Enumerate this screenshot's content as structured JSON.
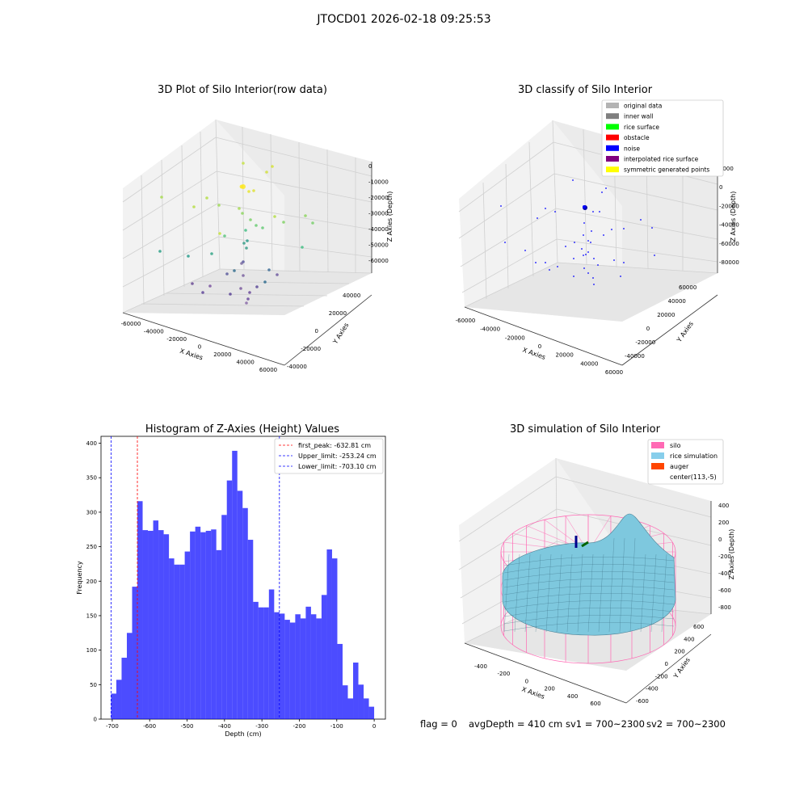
{
  "suptitle": "JTOCD01 2026-02-18 09:25:53",
  "status": {
    "flag": "flag = 0",
    "avg": "avgDepth = 410 cm",
    "sv1": "sv1 = 700~2300",
    "sv2": "sv2 = 700~2300"
  },
  "chart_data": [
    {
      "type": "scatter",
      "title": "3D Plot of Silo Interior(row data)",
      "xlabel": "X Axies",
      "ylabel": "Y Axies",
      "zlabel": "Z Axies (Depth)",
      "xticks": [
        "-60000",
        "-40000",
        "-20000",
        "0",
        "20000",
        "40000",
        "60000"
      ],
      "yticks": [
        "-40000",
        "-20000",
        "0",
        "20000",
        "40000"
      ],
      "zticks": [
        "0",
        "-10000",
        "-20000",
        "-30000",
        "-40000",
        "-50000",
        "-60000"
      ],
      "grid": true
    },
    {
      "type": "scatter",
      "title": "3D classify of Silo Interior",
      "xlabel": "X Axies",
      "ylabel": "Y Axies",
      "zlabel": "Z Axies (Depth)",
      "xticks": [
        "-60000",
        "-40000",
        "-20000",
        "0",
        "20000",
        "40000",
        "60000"
      ],
      "yticks": [
        "-40000",
        "-20000",
        "0",
        "20000",
        "40000",
        "60000"
      ],
      "zticks": [
        "0000",
        "0",
        "-20000",
        "-40000",
        "-60000",
        "-80000"
      ],
      "legend_position": "top-right",
      "legend": [
        {
          "label": "original data",
          "color": "#b3b3b3"
        },
        {
          "label": "inner wall",
          "color": "#7f7f7f"
        },
        {
          "label": "rice surface",
          "color": "#00ff00"
        },
        {
          "label": "obstacle",
          "color": "#ff0000"
        },
        {
          "label": "noise",
          "color": "#0000ff"
        },
        {
          "label": "interpolated rice surface",
          "color": "#800080"
        },
        {
          "label": "symmetric generated points",
          "color": "#ffff00"
        }
      ],
      "grid": true
    },
    {
      "type": "bar",
      "title": "Histogram of Z-Axies (Height) Values",
      "xlabel": "Depth (cm)",
      "ylabel": "Frequency",
      "xlim": [
        -730,
        30
      ],
      "ylim": [
        0,
        410
      ],
      "xticks": [
        -700,
        -600,
        -500,
        -400,
        -300,
        -200,
        -100,
        0
      ],
      "yticks": [
        0,
        50,
        100,
        150,
        200,
        250,
        300,
        350,
        400
      ],
      "bin_start": -703.1,
      "bin_width": 14.06,
      "values": [
        37,
        57,
        89,
        125,
        192,
        316,
        274,
        273,
        288,
        274,
        268,
        233,
        224,
        224,
        243,
        272,
        279,
        271,
        273,
        275,
        245,
        296,
        346,
        389,
        331,
        306,
        260,
        170,
        162,
        162,
        188,
        155,
        153,
        144,
        140,
        152,
        146,
        163,
        152,
        146,
        180,
        246,
        233,
        109,
        49,
        30,
        82,
        50,
        30,
        18
      ],
      "bar_color": "#0000ff",
      "lines": [
        {
          "label": "first_peak: -632.81 cm",
          "x": -632.81,
          "color": "#ff0000"
        },
        {
          "label": "Upper_limit: -253.24 cm",
          "x": -253.24,
          "color": "#0000ff"
        },
        {
          "label": "Lower_limit: -703.10 cm",
          "x": -703.1,
          "color": "#0000ff"
        }
      ],
      "legend_position": "top-right"
    },
    {
      "type": "area",
      "title": "3D simulation of Silo Interior",
      "xlabel": "X Axies",
      "ylabel": "Y Axies",
      "zlabel": "Z Axies (Depth)",
      "xticks": [
        "-400",
        "-200",
        "0",
        "200",
        "400",
        "600"
      ],
      "yticks": [
        "-600",
        "-400",
        "-200",
        "0",
        "200",
        "400",
        "600"
      ],
      "zticks": [
        "400",
        "200",
        "0",
        "-200",
        "-400",
        "-600",
        "-800"
      ],
      "legend_position": "top-right",
      "legend": [
        {
          "label": "silo",
          "color": "#ff69b4"
        },
        {
          "label": "rice simulation",
          "color": "#87ceeb"
        },
        {
          "label": "auger",
          "color": "#ff4500"
        },
        {
          "label": "center(113,-5)",
          "color": ""
        }
      ],
      "grid": true
    }
  ]
}
